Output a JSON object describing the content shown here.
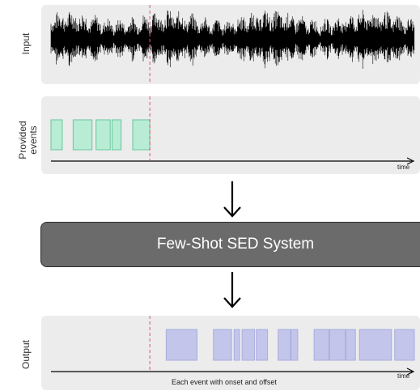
{
  "labels": {
    "input": "Input",
    "provided_line1": "Provided",
    "provided_line2": "events",
    "output": "Output",
    "time_label_provided": "time",
    "time_label_output": "time",
    "system": "Few-Shot SED System",
    "output_caption": "Each event with onset and offset"
  },
  "colors": {
    "panel_bg": "#ececec",
    "provided_fill": "#b9ecd5",
    "provided_stroke": "#62c99a",
    "output_fill": "#c3c6ea",
    "output_stroke": "#a9addf",
    "cutoff_line": "#e0556b",
    "waveform": "#000000",
    "system_bg": "#6b6b6b"
  },
  "timeline": {
    "start": 0,
    "end": 1,
    "cutoff": 0.272,
    "provided_events": [
      [
        0.0,
        0.031
      ],
      [
        0.061,
        0.113
      ],
      [
        0.124,
        0.163
      ],
      [
        0.168,
        0.193
      ],
      [
        0.225,
        0.272
      ]
    ],
    "output_events": [
      [
        0.317,
        0.402
      ],
      [
        0.447,
        0.497
      ],
      [
        0.504,
        0.519
      ],
      [
        0.526,
        0.56
      ],
      [
        0.565,
        0.596
      ],
      [
        0.625,
        0.659
      ],
      [
        0.661,
        0.679
      ],
      [
        0.724,
        0.765
      ],
      [
        0.767,
        0.81
      ],
      [
        0.812,
        0.838
      ],
      [
        0.849,
        0.937
      ],
      [
        0.946,
        1.0
      ]
    ]
  },
  "icons": {
    "arrow1": "down-arrow-icon",
    "arrow2": "down-arrow-icon"
  }
}
